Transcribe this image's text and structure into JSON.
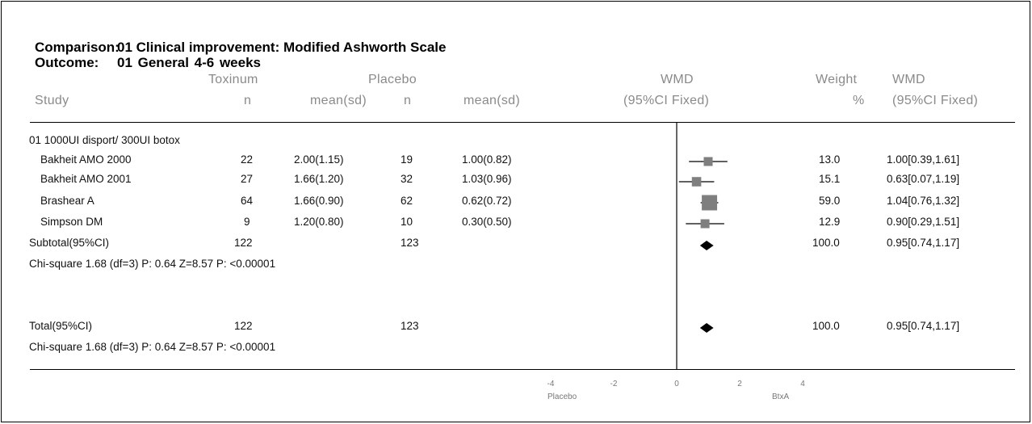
{
  "comparison": {
    "label": "Comparison:",
    "text": "01 Clinical improvement: Modified Ashworth Scale"
  },
  "outcome": {
    "label": "Outcome:",
    "text": "01 General  4-6 weeks"
  },
  "headers": {
    "toxinum": "Toxinum",
    "placebo": "Placebo",
    "wmd_top": "WMD",
    "wmd_ci": "(95%CI Fixed)",
    "weight_top": "Weight",
    "weight_unit": "%",
    "wmd2_top": "WMD",
    "wmd2_ci": "(95%CI Fixed)",
    "study": "Study",
    "n1": "n",
    "mean1": "mean(sd)",
    "n2": "n",
    "mean2": "mean(sd)"
  },
  "group": {
    "label": "01 1000UI disport/ 300UI botox"
  },
  "studies": [
    {
      "name": "Bakheit AMO 2000",
      "tox_n": "22",
      "tox_mean": "2.00(1.15)",
      "pla_n": "19",
      "pla_mean": "1.00(0.82)",
      "weight": "13.0",
      "wmd": "1.00[0.39,1.61]"
    },
    {
      "name": "Bakheit AMO 2001",
      "tox_n": "27",
      "tox_mean": "1.66(1.20)",
      "pla_n": "32",
      "pla_mean": "1.03(0.96)",
      "weight": "15.1",
      "wmd": "0.63[0.07,1.19]"
    },
    {
      "name": "Brashear A",
      "tox_n": "64",
      "tox_mean": "1.66(0.90)",
      "pla_n": "62",
      "pla_mean": "0.62(0.72)",
      "weight": "59.0",
      "wmd": "1.04[0.76,1.32]"
    },
    {
      "name": "Simpson DM",
      "tox_n": "9",
      "tox_mean": "1.20(0.80)",
      "pla_n": "10",
      "pla_mean": "0.30(0.50)",
      "weight": "12.9",
      "wmd": "0.90[0.29,1.51]"
    }
  ],
  "subtotal": {
    "label": "Subtotal(95%CI)",
    "tox_n": "122",
    "pla_n": "123",
    "weight": "100.0",
    "wmd": "0.95[0.74,1.17]"
  },
  "subtotal_het": "Chi-square 1.68 (df=3) P: 0.64  Z=8.57 P: <0.00001",
  "total": {
    "label": "Total(95%CI)",
    "tox_n": "122",
    "pla_n": "123",
    "weight": "100.0",
    "wmd": "0.95[0.74,1.17]"
  },
  "total_het": "Chi-square 1.68 (df=3) P: 0.64  Z=8.57 P: <0.00001",
  "axis": {
    "left_label": "Placebo",
    "right_label": "BtxA"
  },
  "chart_data": {
    "type": "forest",
    "xlim": [
      -4,
      4
    ],
    "xticks": [
      "-4",
      "-2",
      "0",
      "2",
      "4"
    ],
    "null_line": 0,
    "studies": [
      {
        "name": "Bakheit AMO 2000",
        "est": 1.0,
        "lo": 0.39,
        "hi": 1.61,
        "weight": 13.0
      },
      {
        "name": "Bakheit AMO 2001",
        "est": 0.63,
        "lo": 0.07,
        "hi": 1.19,
        "weight": 15.1
      },
      {
        "name": "Brashear A",
        "est": 1.04,
        "lo": 0.76,
        "hi": 1.32,
        "weight": 59.0
      },
      {
        "name": "Simpson DM",
        "est": 0.9,
        "lo": 0.29,
        "hi": 1.51,
        "weight": 12.9
      }
    ],
    "pooled": [
      {
        "name": "Subtotal(95%CI)",
        "est": 0.95,
        "lo": 0.74,
        "hi": 1.17
      },
      {
        "name": "Total(95%CI)",
        "est": 0.95,
        "lo": 0.74,
        "hi": 1.17
      }
    ],
    "colors": {
      "box": "#7f7f7f",
      "line": "#000000",
      "diamond": "#000000"
    }
  }
}
